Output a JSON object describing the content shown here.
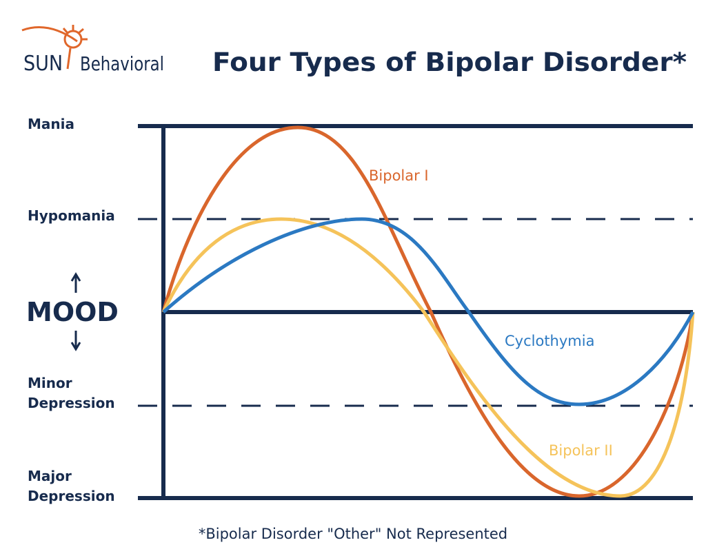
{
  "logo": {
    "word1": "SUN",
    "word2": "Behavioral"
  },
  "title": "Four Types of Bipolar Disorder*",
  "levels": [
    {
      "lines": [
        "Mania"
      ]
    },
    {
      "lines": [
        "Hypomania"
      ]
    },
    {
      "lines": [
        "MOOD"
      ]
    },
    {
      "lines": [
        "Minor",
        "Depression"
      ]
    },
    {
      "lines": [
        "Major",
        "Depression"
      ]
    }
  ],
  "curves": [
    "Bipolar I",
    "Cyclothymia",
    "Bipolar II"
  ],
  "footnote": "*Bipolar Disorder \"Other\" Not Represented"
}
